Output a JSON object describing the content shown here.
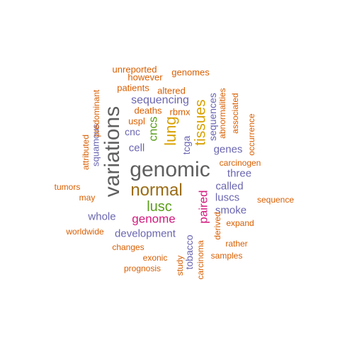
{
  "wordcloud": {
    "words": [
      {
        "text": "genomic",
        "color": "#5f5f5f"
      },
      {
        "text": "variations",
        "color": "#5f5f5f"
      },
      {
        "text": "normal",
        "color": "#9a6b15"
      },
      {
        "text": "lung",
        "color": "#d9a100"
      },
      {
        "text": "tissues",
        "color": "#d9a100"
      },
      {
        "text": "lusc",
        "color": "#5a9e1a"
      },
      {
        "text": "cncs",
        "color": "#5a9e1a"
      },
      {
        "text": "genome",
        "color": "#d21a7d"
      },
      {
        "text": "paired",
        "color": "#d21a7d"
      },
      {
        "text": "sequencing",
        "color": "#6a66b0"
      },
      {
        "text": "sequences",
        "color": "#6a66b0"
      },
      {
        "text": "development",
        "color": "#6a66b0"
      },
      {
        "text": "whole",
        "color": "#6a66b0"
      },
      {
        "text": "smoke",
        "color": "#6a66b0"
      },
      {
        "text": "luscs",
        "color": "#6a66b0"
      },
      {
        "text": "called",
        "color": "#6a66b0"
      },
      {
        "text": "three",
        "color": "#6a66b0"
      },
      {
        "text": "genes",
        "color": "#6a66b0"
      },
      {
        "text": "tcga",
        "color": "#6a66b0"
      },
      {
        "text": "cell",
        "color": "#6a66b0"
      },
      {
        "text": "cnc",
        "color": "#6a66b0"
      },
      {
        "text": "squamous",
        "color": "#6a66b0"
      },
      {
        "text": "tobacco",
        "color": "#6a66b0"
      },
      {
        "text": "unreported",
        "color": "#d95f02"
      },
      {
        "text": "however",
        "color": "#d95f02"
      },
      {
        "text": "genomes",
        "color": "#d95f02"
      },
      {
        "text": "patients",
        "color": "#d95f02"
      },
      {
        "text": "altered",
        "color": "#d95f02"
      },
      {
        "text": "deaths",
        "color": "#d95f02"
      },
      {
        "text": "rbmx",
        "color": "#d95f02"
      },
      {
        "text": "uspl",
        "color": "#d95f02"
      },
      {
        "text": "predominant",
        "color": "#d95f02"
      },
      {
        "text": "abnormalities",
        "color": "#d95f02"
      },
      {
        "text": "associated",
        "color": "#d95f02"
      },
      {
        "text": "occurrence",
        "color": "#d95f02"
      },
      {
        "text": "carcinogen",
        "color": "#d95f02"
      },
      {
        "text": "attributed",
        "color": "#d95f02"
      },
      {
        "text": "tumors",
        "color": "#d95f02"
      },
      {
        "text": "may",
        "color": "#d95f02"
      },
      {
        "text": "sequence",
        "color": "#d95f02"
      },
      {
        "text": "expand",
        "color": "#d95f02"
      },
      {
        "text": "worldwide",
        "color": "#d95f02"
      },
      {
        "text": "derived",
        "color": "#d95f02"
      },
      {
        "text": "rather",
        "color": "#d95f02"
      },
      {
        "text": "changes",
        "color": "#d95f02"
      },
      {
        "text": "exonic",
        "color": "#d95f02"
      },
      {
        "text": "samples",
        "color": "#d95f02"
      },
      {
        "text": "prognosis",
        "color": "#d95f02"
      },
      {
        "text": "study",
        "color": "#d95f02"
      },
      {
        "text": "carcinoma",
        "color": "#d95f02"
      }
    ]
  }
}
